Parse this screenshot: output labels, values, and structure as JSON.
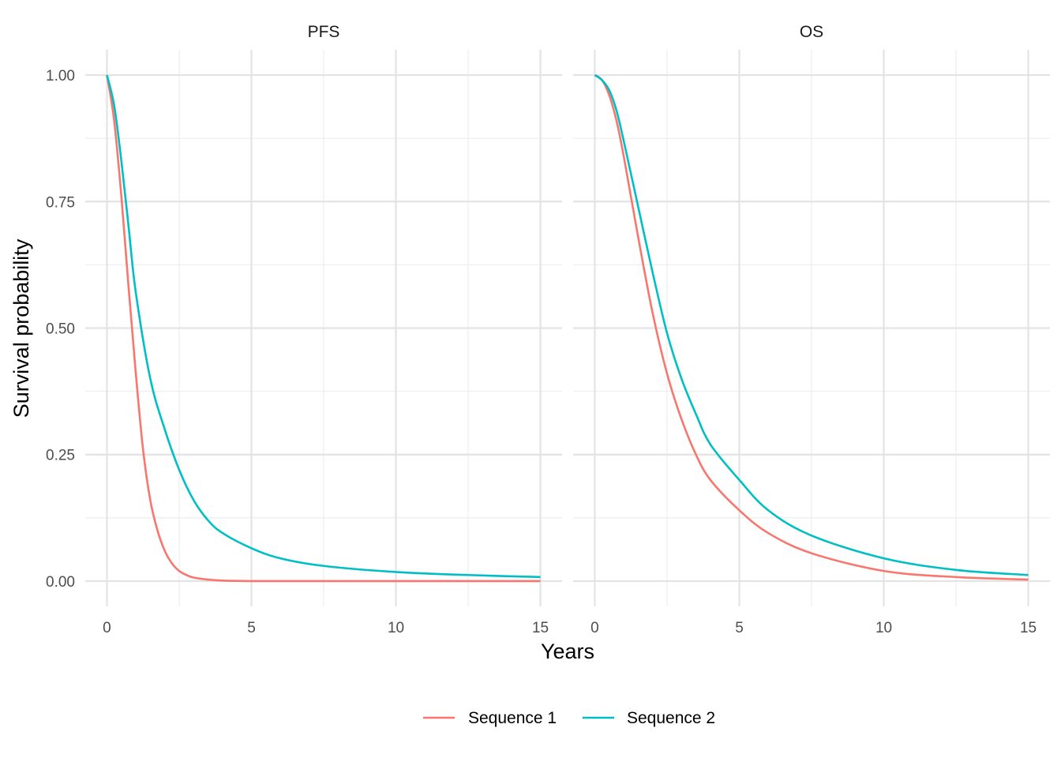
{
  "chart_data": {
    "type": "line",
    "xlabel": "Years",
    "ylabel": "Survival probability",
    "xlim": [
      0,
      15
    ],
    "ylim": [
      0,
      1
    ],
    "x_ticks": [
      0,
      5,
      10,
      15
    ],
    "x_tick_labels": [
      "0",
      "5",
      "10",
      "15"
    ],
    "y_ticks": [
      0,
      0.25,
      0.5,
      0.75,
      1
    ],
    "y_tick_labels": [
      "0.00",
      "0.25",
      "0.50",
      "0.75",
      "1.00"
    ],
    "grid": true,
    "legend_position": "bottom",
    "legend": [
      {
        "name": "Sequence 1",
        "color": "#F8766D"
      },
      {
        "name": "Sequence 2",
        "color": "#00BFC4"
      }
    ],
    "panels": [
      {
        "title": "PFS",
        "series": [
          {
            "name": "Sequence 1",
            "color": "#F8766D",
            "x": [
              0,
              0.25,
              0.5,
              0.75,
              1.0,
              1.25,
              1.5,
              1.75,
              2.0,
              2.25,
              2.5,
              2.75,
              3.0,
              3.5,
              4.0,
              5.0,
              7.5,
              10,
              12.5,
              15
            ],
            "y": [
              1.0,
              0.91,
              0.76,
              0.58,
              0.41,
              0.26,
              0.16,
              0.1,
              0.06,
              0.035,
              0.02,
              0.012,
              0.007,
              0.003,
              0.001,
              0.0,
              0.0,
              0.0,
              0.0,
              0.0
            ]
          },
          {
            "name": "Sequence 2",
            "color": "#00BFC4",
            "x": [
              0,
              0.25,
              0.5,
              0.75,
              1.0,
              1.5,
              2.0,
              2.5,
              3.0,
              3.5,
              4.0,
              5.0,
              6.0,
              7.5,
              10,
              12.5,
              15
            ],
            "y": [
              1.0,
              0.94,
              0.83,
              0.7,
              0.57,
              0.4,
              0.3,
              0.22,
              0.16,
              0.12,
              0.095,
              0.065,
              0.045,
              0.03,
              0.018,
              0.012,
              0.008
            ]
          }
        ]
      },
      {
        "title": "OS",
        "series": [
          {
            "name": "Sequence 1",
            "color": "#F8766D",
            "x": [
              0,
              0.25,
              0.5,
              0.75,
              1.0,
              1.5,
              2.0,
              2.5,
              3.0,
              3.5,
              4.0,
              5.0,
              6.0,
              7.5,
              10,
              12.5,
              15
            ],
            "y": [
              1.0,
              0.99,
              0.96,
              0.91,
              0.84,
              0.68,
              0.53,
              0.41,
              0.32,
              0.25,
              0.2,
              0.14,
              0.095,
              0.055,
              0.02,
              0.008,
              0.003
            ]
          },
          {
            "name": "Sequence 2",
            "color": "#00BFC4",
            "x": [
              0,
              0.25,
              0.5,
              0.75,
              1.0,
              1.5,
              2.0,
              2.5,
              3.0,
              3.5,
              4.0,
              5.0,
              6.0,
              7.5,
              10,
              12.5,
              15
            ],
            "y": [
              1.0,
              0.99,
              0.97,
              0.93,
              0.87,
              0.74,
              0.61,
              0.49,
              0.4,
              0.33,
              0.27,
              0.2,
              0.14,
              0.09,
              0.045,
              0.022,
              0.012
            ]
          }
        ]
      }
    ]
  }
}
